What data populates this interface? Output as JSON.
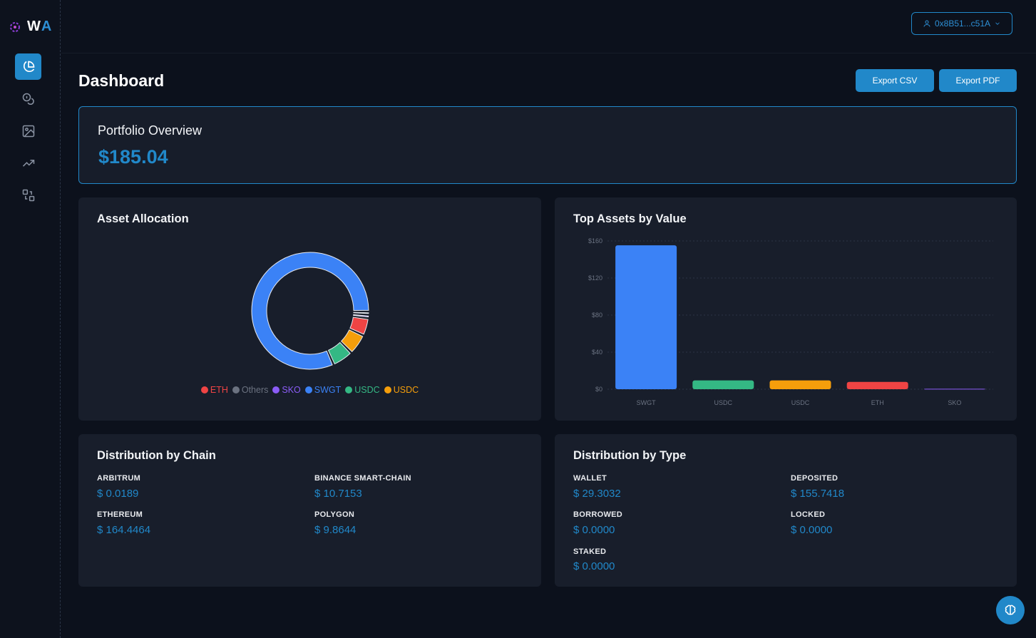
{
  "brand": {
    "w": "W",
    "a": "A"
  },
  "sidebar": {
    "items": [
      {
        "icon": "pie-chart-icon",
        "active": true
      },
      {
        "icon": "coins-icon"
      },
      {
        "icon": "image-icon"
      },
      {
        "icon": "trending-up-icon"
      },
      {
        "icon": "swap-icon"
      }
    ]
  },
  "header": {
    "wallet": "0x8B51...c51A"
  },
  "page": {
    "title": "Dashboard",
    "export_csv": "Export CSV",
    "export_pdf": "Export PDF"
  },
  "overview": {
    "title": "Portfolio Overview",
    "value": "$185.04"
  },
  "allocation": {
    "title": "Asset Allocation"
  },
  "top_assets": {
    "title": "Top Assets by Value"
  },
  "chain": {
    "title": "Distribution by Chain",
    "items": [
      {
        "label": "ARBITRUM",
        "value": "$ 0.0189"
      },
      {
        "label": "BINANCE SMART-CHAIN",
        "value": "$ 10.7153"
      },
      {
        "label": "ETHEREUM",
        "value": "$ 164.4464"
      },
      {
        "label": "POLYGON",
        "value": "$ 9.8644"
      }
    ]
  },
  "type": {
    "title": "Distribution by Type",
    "items": [
      {
        "label": "WALLET",
        "value": "$ 29.3032"
      },
      {
        "label": "DEPOSITED",
        "value": "$ 155.7418"
      },
      {
        "label": "BORROWED",
        "value": "$ 0.0000"
      },
      {
        "label": "LOCKED",
        "value": "$ 0.0000"
      },
      {
        "label": "STAKED",
        "value": "$ 0.0000"
      }
    ]
  },
  "chart_data": [
    {
      "type": "pie",
      "title": "Asset Allocation",
      "legend_position": "bottom",
      "categories": [
        "ETH",
        "Others",
        "SKO",
        "SWGT",
        "USDC",
        "USDC"
      ],
      "values": [
        8.0,
        0.3,
        0.5,
        155.3,
        9.8,
        9.7
      ],
      "colors": [
        "#ef4444",
        "#6b7280",
        "#8b5cf6",
        "#3b82f6",
        "#34b884",
        "#f59e0b"
      ]
    },
    {
      "type": "bar",
      "title": "Top Assets by Value",
      "categories": [
        "SWGT",
        "USDC",
        "USDC",
        "ETH",
        "SKO"
      ],
      "values": [
        155.3,
        9.5,
        9.5,
        7.9,
        0.5
      ],
      "colors": [
        "#3b82f6",
        "#34b884",
        "#f59e0b",
        "#ef4444",
        "#8b5cf6"
      ],
      "yticks": [
        "$0",
        "$40",
        "$80",
        "$120",
        "$160"
      ],
      "ylim": [
        0,
        160
      ],
      "grid": true
    }
  ]
}
